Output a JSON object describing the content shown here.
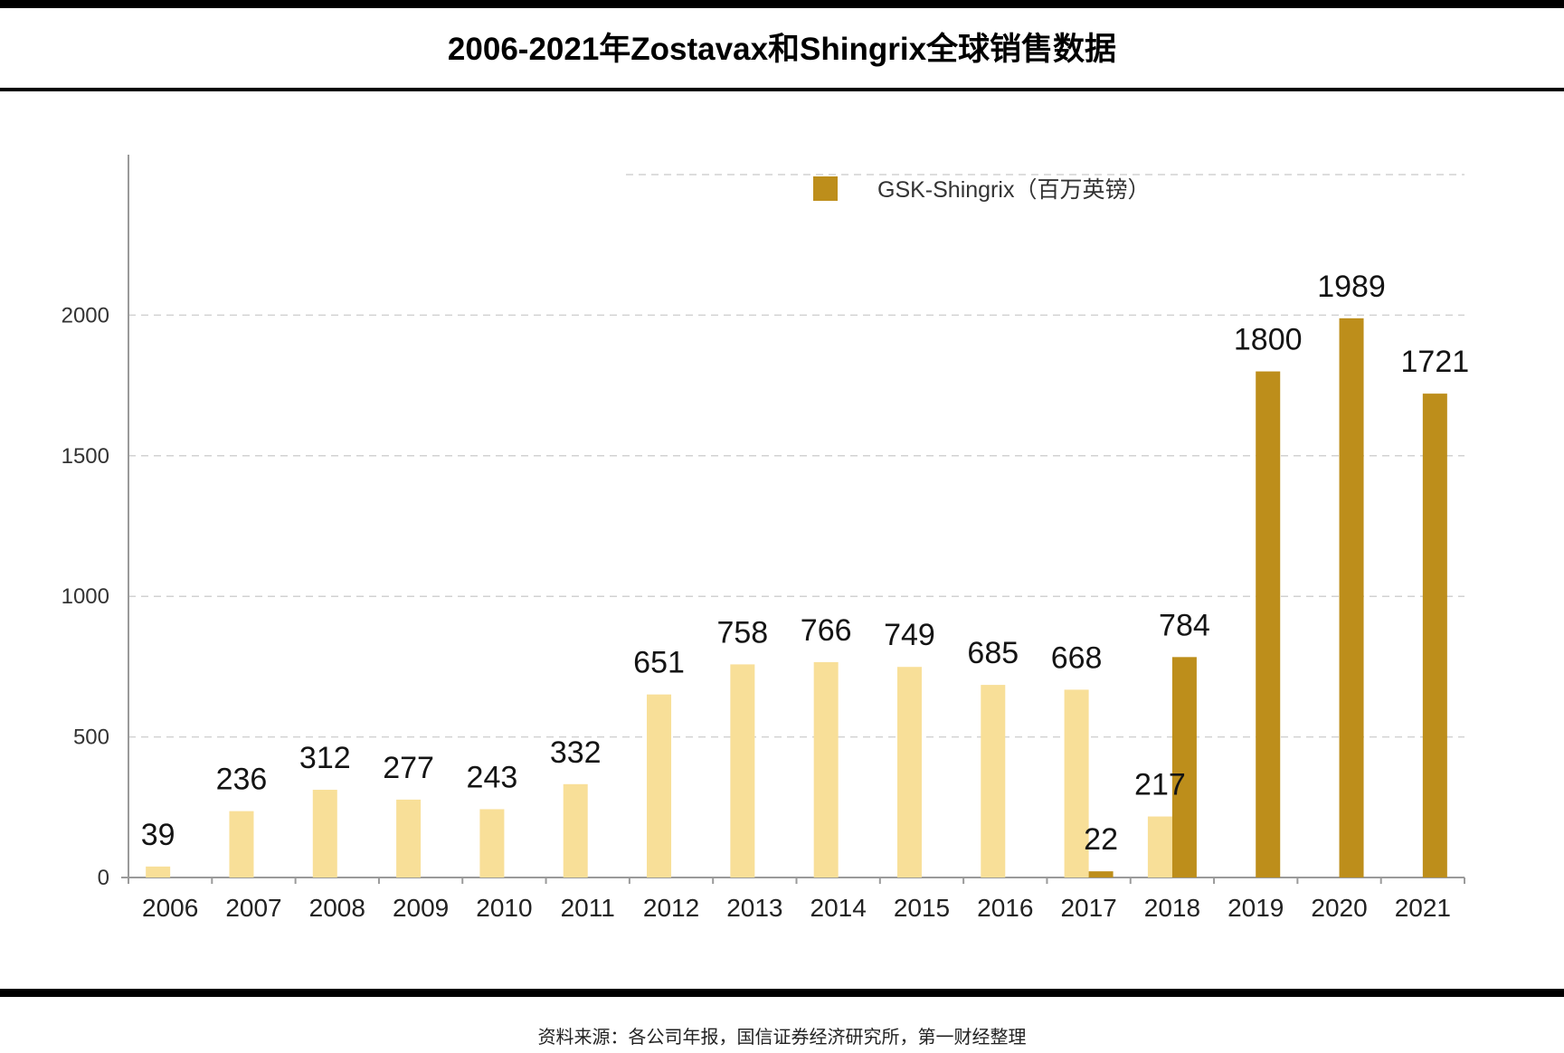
{
  "source": "资料来源：各公司年报，国信证券经济研究所，第一财经整理",
  "chart_data": {
    "type": "bar",
    "title": "2006-2021年Zostavax和Shingrix全球销售数据",
    "xlabel": "",
    "ylabel": "",
    "categories": [
      "2006",
      "2007",
      "2008",
      "2009",
      "2010",
      "2011",
      "2012",
      "2013",
      "2014",
      "2015",
      "2016",
      "2017",
      "2018",
      "2019",
      "2020",
      "2021"
    ],
    "series": [
      {
        "color": "#F8DF98",
        "values": [
          39,
          236,
          312,
          277,
          243,
          332,
          651,
          758,
          766,
          749,
          685,
          668,
          217,
          null,
          null,
          null
        ]
      },
      {
        "name": "GSK-Shingrix（百万英镑）",
        "color": "#BD8E1B",
        "values": [
          null,
          null,
          null,
          null,
          null,
          null,
          null,
          null,
          null,
          null,
          null,
          22,
          784,
          1800,
          1989,
          1721
        ]
      }
    ],
    "ylim": [
      0,
      2500
    ],
    "yticks": [
      0,
      500,
      1000,
      1500,
      2000
    ],
    "grid": true,
    "legend": "top"
  }
}
